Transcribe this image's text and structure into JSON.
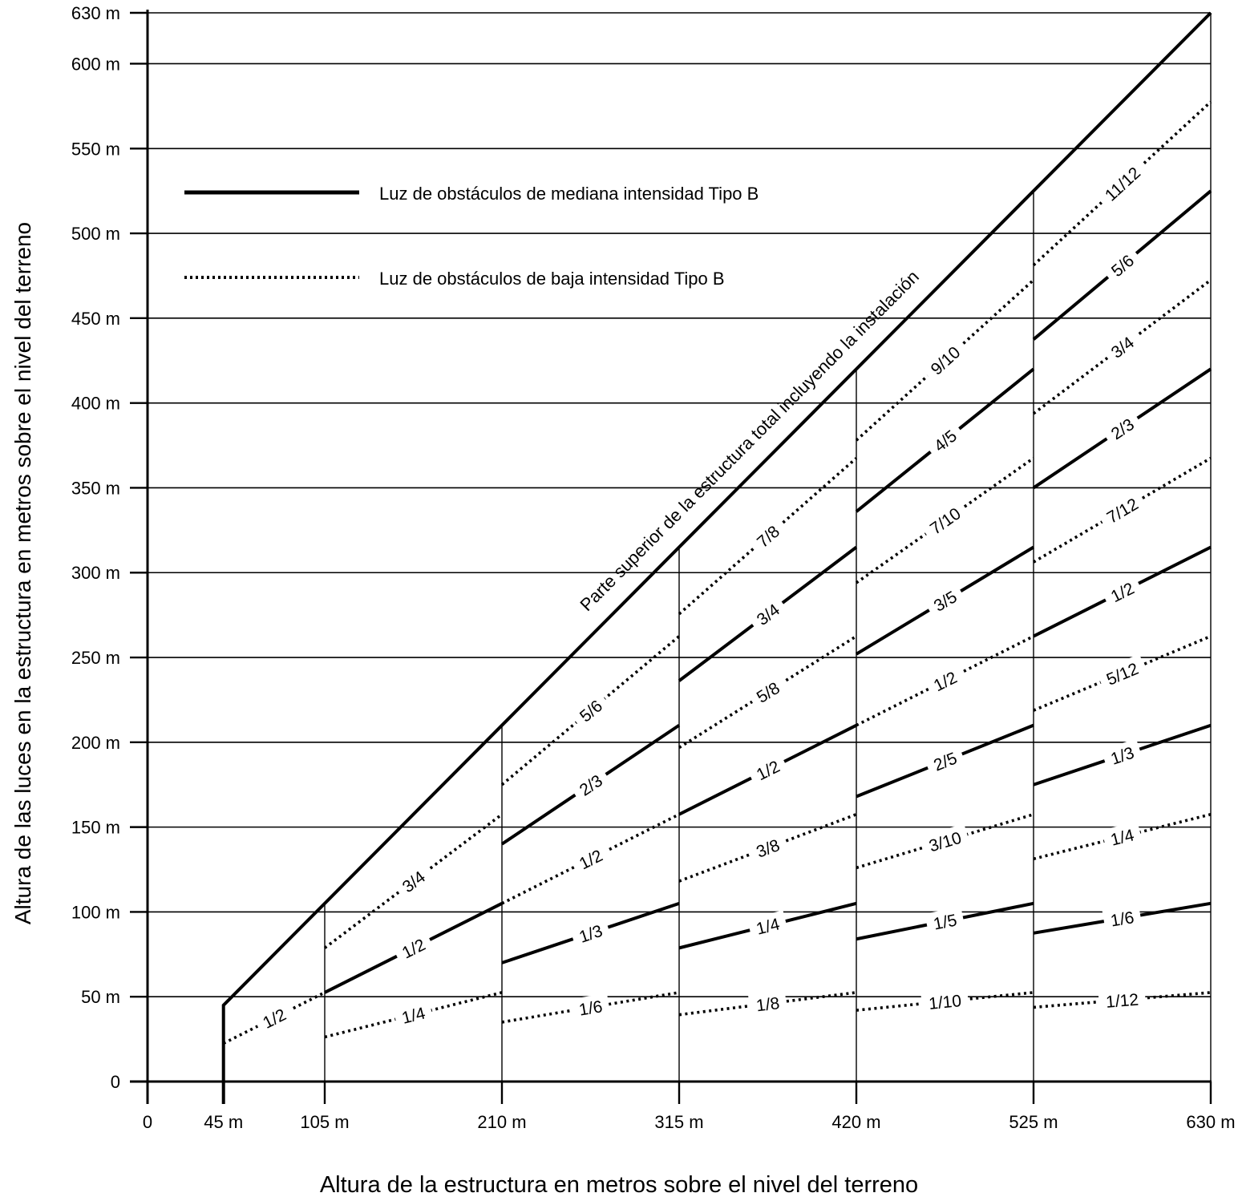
{
  "chart_data": {
    "type": "line",
    "xlabel": "Altura de la estructura en metros sobre el nivel del terreno",
    "ylabel": "Altura de las luces en la estructura en metros sobre el nivel del terreno",
    "xlim": [
      0,
      630
    ],
    "ylim": [
      0,
      630
    ],
    "x_ticks": [
      "0",
      "45 m",
      "105 m",
      "210 m",
      "315 m",
      "420 m",
      "525 m",
      "630 m"
    ],
    "x_tick_values": [
      0,
      45,
      105,
      210,
      315,
      420,
      525,
      630
    ],
    "y_ticks": [
      "0",
      "50 m",
      "100 m",
      "150 m",
      "200 m",
      "250 m",
      "300 m",
      "350 m",
      "400 m",
      "450 m",
      "500 m",
      "550 m",
      "600 m",
      "630 m"
    ],
    "y_tick_values": [
      0,
      50,
      100,
      150,
      200,
      250,
      300,
      350,
      400,
      450,
      500,
      550,
      600,
      630
    ],
    "grid": true,
    "legend": {
      "placement": "top-left",
      "entries": [
        {
          "style": "solid",
          "label": "Luz de obstáculos de mediana intensidad Tipo B"
        },
        {
          "style": "dotted",
          "label": "Luz de obstáculos de baja intensidad Tipo B"
        }
      ]
    },
    "top_line": {
      "label": "Parte superior de la estructura total incluyendo la instalación",
      "from": [
        45,
        45
      ],
      "to": [
        630,
        630
      ]
    },
    "series": [
      {
        "style": "dotted",
        "label": "1/2",
        "fraction": 0.5,
        "x": [
          45,
          105
        ]
      },
      {
        "style": "dotted",
        "label": "3/4",
        "fraction": 0.75,
        "x": [
          105,
          210
        ]
      },
      {
        "style": "solid",
        "label": "1/2",
        "fraction": 0.5,
        "x": [
          105,
          210
        ]
      },
      {
        "style": "dotted",
        "label": "1/4",
        "fraction": 0.25,
        "x": [
          105,
          210
        ]
      },
      {
        "style": "dotted",
        "label": "5/6",
        "fraction": 0.8333,
        "x": [
          210,
          315
        ]
      },
      {
        "style": "solid",
        "label": "2/3",
        "fraction": 0.6667,
        "x": [
          210,
          315
        ]
      },
      {
        "style": "dotted",
        "label": "1/2",
        "fraction": 0.5,
        "x": [
          210,
          315
        ]
      },
      {
        "style": "solid",
        "label": "1/3",
        "fraction": 0.3333,
        "x": [
          210,
          315
        ]
      },
      {
        "style": "dotted",
        "label": "1/6",
        "fraction": 0.1667,
        "x": [
          210,
          315
        ]
      },
      {
        "style": "dotted",
        "label": "7/8",
        "fraction": 0.875,
        "x": [
          315,
          420
        ]
      },
      {
        "style": "solid",
        "label": "3/4",
        "fraction": 0.75,
        "x": [
          315,
          420
        ]
      },
      {
        "style": "dotted",
        "label": "5/8",
        "fraction": 0.625,
        "x": [
          315,
          420
        ]
      },
      {
        "style": "solid",
        "label": "1/2",
        "fraction": 0.5,
        "x": [
          315,
          420
        ]
      },
      {
        "style": "dotted",
        "label": "3/8",
        "fraction": 0.375,
        "x": [
          315,
          420
        ]
      },
      {
        "style": "solid",
        "label": "1/4",
        "fraction": 0.25,
        "x": [
          315,
          420
        ]
      },
      {
        "style": "dotted",
        "label": "1/8",
        "fraction": 0.125,
        "x": [
          315,
          420
        ]
      },
      {
        "style": "dotted",
        "label": "9/10",
        "fraction": 0.9,
        "x": [
          420,
          525
        ]
      },
      {
        "style": "solid",
        "label": "4/5",
        "fraction": 0.8,
        "x": [
          420,
          525
        ]
      },
      {
        "style": "dotted",
        "label": "7/10",
        "fraction": 0.7,
        "x": [
          420,
          525
        ]
      },
      {
        "style": "solid",
        "label": "3/5",
        "fraction": 0.6,
        "x": [
          420,
          525
        ]
      },
      {
        "style": "dotted",
        "label": "1/2",
        "fraction": 0.5,
        "x": [
          420,
          525
        ]
      },
      {
        "style": "solid",
        "label": "2/5",
        "fraction": 0.4,
        "x": [
          420,
          525
        ]
      },
      {
        "style": "dotted",
        "label": "3/10",
        "fraction": 0.3,
        "x": [
          420,
          525
        ]
      },
      {
        "style": "solid",
        "label": "1/5",
        "fraction": 0.2,
        "x": [
          420,
          525
        ]
      },
      {
        "style": "dotted",
        "label": "1/10",
        "fraction": 0.1,
        "x": [
          420,
          525
        ]
      },
      {
        "style": "dotted",
        "label": "11/12",
        "fraction": 0.9167,
        "x": [
          525,
          630
        ]
      },
      {
        "style": "solid",
        "label": "5/6",
        "fraction": 0.8333,
        "x": [
          525,
          630
        ]
      },
      {
        "style": "dotted",
        "label": "3/4",
        "fraction": 0.75,
        "x": [
          525,
          630
        ]
      },
      {
        "style": "solid",
        "label": "2/3",
        "fraction": 0.6667,
        "x": [
          525,
          630
        ]
      },
      {
        "style": "dotted",
        "label": "7/12",
        "fraction": 0.5833,
        "x": [
          525,
          630
        ]
      },
      {
        "style": "solid",
        "label": "1/2",
        "fraction": 0.5,
        "x": [
          525,
          630
        ]
      },
      {
        "style": "dotted",
        "label": "5/12",
        "fraction": 0.4167,
        "x": [
          525,
          630
        ]
      },
      {
        "style": "solid",
        "label": "1/3",
        "fraction": 0.3333,
        "x": [
          525,
          630
        ]
      },
      {
        "style": "dotted",
        "label": "1/4",
        "fraction": 0.25,
        "x": [
          525,
          630
        ]
      },
      {
        "style": "solid",
        "label": "1/6",
        "fraction": 0.1667,
        "x": [
          525,
          630
        ]
      },
      {
        "style": "dotted",
        "label": "1/12",
        "fraction": 0.0833,
        "x": [
          525,
          630
        ]
      }
    ]
  }
}
